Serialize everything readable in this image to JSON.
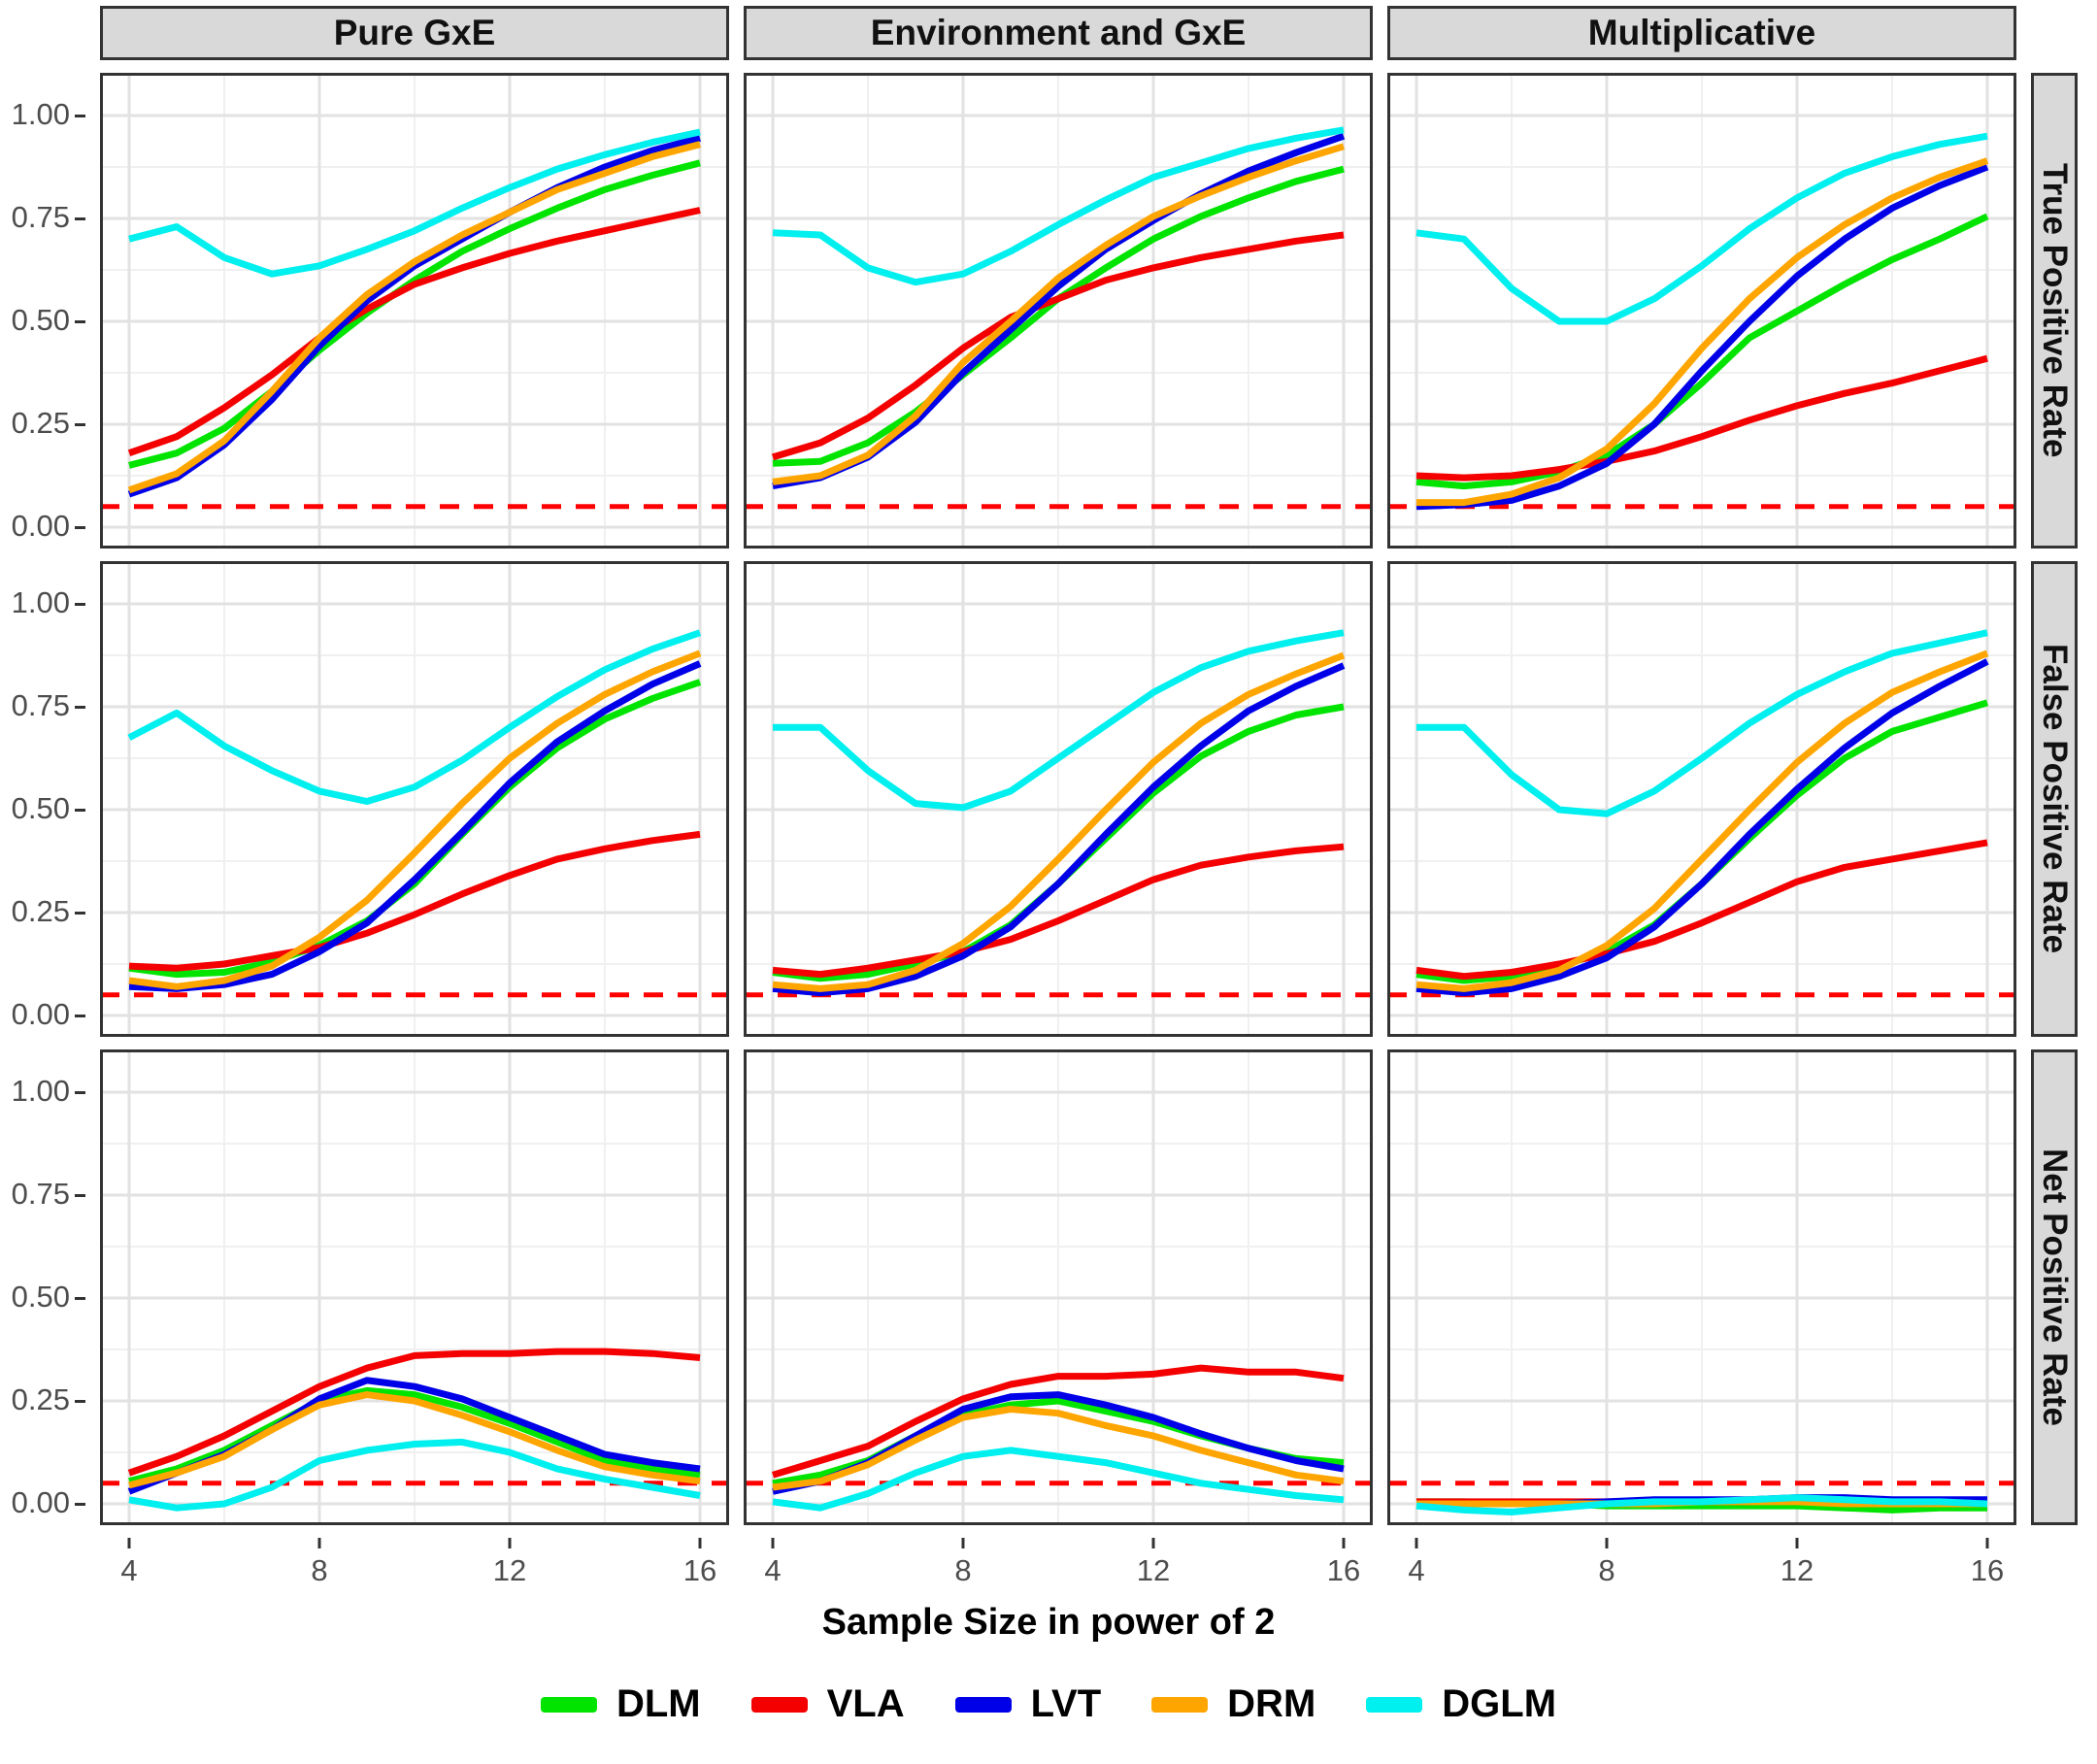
{
  "figure": {
    "columns": [
      "Pure GxE",
      "Environment and GxE",
      "Multiplicative"
    ],
    "rows": [
      "True Positive Rate",
      "False Positive Rate",
      "Net Positive Rate"
    ],
    "x_axis": {
      "title": "Sample Size in power of 2",
      "tick_labels": [
        "4",
        "8",
        "12",
        "16"
      ],
      "range": [
        4,
        16
      ]
    },
    "y_axis": {
      "tick_labels": [
        "1.00",
        "0.75",
        "0.50",
        "0.25",
        "0.00"
      ],
      "range": [
        0.0,
        1.0
      ]
    },
    "strip_bg": "#d9d9d9",
    "grid": "on"
  },
  "legend": {
    "position": "bottom",
    "items": [
      {
        "label": "DLM",
        "color": "#00e400"
      },
      {
        "label": "VLA",
        "color": "#f40000"
      },
      {
        "label": "LVT",
        "color": "#0000e8"
      },
      {
        "label": "DRM",
        "color": "#ffa500"
      },
      {
        "label": "DGLM",
        "color": "#00efef"
      }
    ]
  },
  "reference_line": {
    "y": 0.05,
    "color": "#ff0000",
    "style": "dashed"
  },
  "chart_data": [
    {
      "type": "line",
      "row": "True Positive Rate",
      "col": "Pure GxE",
      "x": [
        4,
        5,
        6,
        7,
        8,
        9,
        10,
        11,
        12,
        13,
        14,
        15,
        16
      ],
      "ylim": [
        -0.05,
        1.05
      ],
      "series": [
        {
          "name": "DLM",
          "values": [
            0.15,
            0.18,
            0.24,
            0.33,
            0.43,
            0.52,
            0.6,
            0.67,
            0.725,
            0.775,
            0.82,
            0.855,
            0.885
          ]
        },
        {
          "name": "VLA",
          "values": [
            0.18,
            0.22,
            0.29,
            0.37,
            0.46,
            0.53,
            0.59,
            0.63,
            0.665,
            0.695,
            0.72,
            0.745,
            0.77
          ]
        },
        {
          "name": "LVT",
          "values": [
            0.08,
            0.12,
            0.2,
            0.31,
            0.44,
            0.55,
            0.635,
            0.7,
            0.765,
            0.825,
            0.875,
            0.915,
            0.945
          ]
        },
        {
          "name": "DRM",
          "values": [
            0.09,
            0.13,
            0.21,
            0.33,
            0.46,
            0.565,
            0.645,
            0.71,
            0.765,
            0.82,
            0.86,
            0.9,
            0.93
          ]
        },
        {
          "name": "DGLM",
          "values": [
            0.7,
            0.73,
            0.655,
            0.615,
            0.635,
            0.675,
            0.72,
            0.775,
            0.825,
            0.87,
            0.905,
            0.935,
            0.96
          ]
        }
      ]
    },
    {
      "type": "line",
      "row": "True Positive Rate",
      "col": "Environment and GxE",
      "x": [
        4,
        5,
        6,
        7,
        8,
        9,
        10,
        11,
        12,
        13,
        14,
        15,
        16
      ],
      "ylim": [
        -0.05,
        1.05
      ],
      "series": [
        {
          "name": "DLM",
          "values": [
            0.155,
            0.16,
            0.205,
            0.28,
            0.37,
            0.46,
            0.555,
            0.63,
            0.7,
            0.755,
            0.8,
            0.84,
            0.87
          ]
        },
        {
          "name": "VLA",
          "values": [
            0.17,
            0.205,
            0.265,
            0.345,
            0.435,
            0.51,
            0.555,
            0.6,
            0.63,
            0.655,
            0.675,
            0.695,
            0.71
          ]
        },
        {
          "name": "LVT",
          "values": [
            0.1,
            0.12,
            0.17,
            0.255,
            0.375,
            0.48,
            0.585,
            0.675,
            0.745,
            0.81,
            0.865,
            0.91,
            0.95
          ]
        },
        {
          "name": "DRM",
          "values": [
            0.11,
            0.125,
            0.175,
            0.27,
            0.4,
            0.5,
            0.605,
            0.685,
            0.755,
            0.805,
            0.85,
            0.89,
            0.925
          ]
        },
        {
          "name": "DGLM",
          "values": [
            0.715,
            0.71,
            0.63,
            0.595,
            0.615,
            0.67,
            0.735,
            0.795,
            0.85,
            0.885,
            0.92,
            0.945,
            0.965
          ]
        }
      ]
    },
    {
      "type": "line",
      "row": "True Positive Rate",
      "col": "Multiplicative",
      "x": [
        4,
        5,
        6,
        7,
        8,
        9,
        10,
        11,
        12,
        13,
        14,
        15,
        16
      ],
      "ylim": [
        -0.05,
        1.05
      ],
      "series": [
        {
          "name": "DLM",
          "values": [
            0.11,
            0.1,
            0.11,
            0.135,
            0.175,
            0.25,
            0.35,
            0.46,
            0.525,
            0.59,
            0.65,
            0.7,
            0.755
          ]
        },
        {
          "name": "VLA",
          "values": [
            0.125,
            0.12,
            0.125,
            0.14,
            0.16,
            0.185,
            0.22,
            0.26,
            0.295,
            0.325,
            0.35,
            0.38,
            0.41
          ]
        },
        {
          "name": "LVT",
          "values": [
            0.05,
            0.055,
            0.065,
            0.1,
            0.155,
            0.25,
            0.38,
            0.5,
            0.61,
            0.7,
            0.775,
            0.83,
            0.875
          ]
        },
        {
          "name": "DRM",
          "values": [
            0.06,
            0.06,
            0.08,
            0.12,
            0.19,
            0.3,
            0.435,
            0.555,
            0.655,
            0.735,
            0.8,
            0.85,
            0.89
          ]
        },
        {
          "name": "DGLM",
          "values": [
            0.715,
            0.7,
            0.58,
            0.5,
            0.5,
            0.555,
            0.635,
            0.725,
            0.8,
            0.86,
            0.9,
            0.93,
            0.95
          ]
        }
      ]
    },
    {
      "type": "line",
      "row": "False Positive Rate",
      "col": "Pure GxE",
      "x": [
        4,
        5,
        6,
        7,
        8,
        9,
        10,
        11,
        12,
        13,
        14,
        15,
        16
      ],
      "ylim": [
        -0.05,
        1.05
      ],
      "series": [
        {
          "name": "DLM",
          "values": [
            0.115,
            0.1,
            0.105,
            0.13,
            0.17,
            0.23,
            0.32,
            0.44,
            0.555,
            0.65,
            0.72,
            0.77,
            0.81
          ]
        },
        {
          "name": "VLA",
          "values": [
            0.12,
            0.115,
            0.125,
            0.145,
            0.165,
            0.2,
            0.245,
            0.295,
            0.34,
            0.38,
            0.405,
            0.425,
            0.44
          ]
        },
        {
          "name": "LVT",
          "values": [
            0.07,
            0.065,
            0.075,
            0.1,
            0.155,
            0.225,
            0.33,
            0.445,
            0.565,
            0.665,
            0.74,
            0.805,
            0.855
          ]
        },
        {
          "name": "DRM",
          "values": [
            0.085,
            0.07,
            0.085,
            0.12,
            0.19,
            0.28,
            0.395,
            0.515,
            0.625,
            0.71,
            0.78,
            0.835,
            0.88
          ]
        },
        {
          "name": "DGLM",
          "values": [
            0.675,
            0.735,
            0.655,
            0.595,
            0.545,
            0.52,
            0.555,
            0.62,
            0.7,
            0.775,
            0.84,
            0.89,
            0.93
          ]
        }
      ]
    },
    {
      "type": "line",
      "row": "False Positive Rate",
      "col": "Environment and GxE",
      "x": [
        4,
        5,
        6,
        7,
        8,
        9,
        10,
        11,
        12,
        13,
        14,
        15,
        16
      ],
      "ylim": [
        -0.05,
        1.05
      ],
      "series": [
        {
          "name": "DLM",
          "values": [
            0.105,
            0.09,
            0.1,
            0.125,
            0.155,
            0.22,
            0.32,
            0.43,
            0.54,
            0.63,
            0.69,
            0.73,
            0.75
          ]
        },
        {
          "name": "VLA",
          "values": [
            0.11,
            0.1,
            0.115,
            0.135,
            0.155,
            0.185,
            0.23,
            0.28,
            0.33,
            0.365,
            0.385,
            0.4,
            0.41
          ]
        },
        {
          "name": "LVT",
          "values": [
            0.065,
            0.055,
            0.065,
            0.095,
            0.145,
            0.215,
            0.32,
            0.44,
            0.555,
            0.655,
            0.74,
            0.8,
            0.85
          ]
        },
        {
          "name": "DRM",
          "values": [
            0.075,
            0.065,
            0.075,
            0.11,
            0.175,
            0.265,
            0.38,
            0.5,
            0.615,
            0.71,
            0.78,
            0.83,
            0.875
          ]
        },
        {
          "name": "DGLM",
          "values": [
            0.7,
            0.7,
            0.595,
            0.515,
            0.505,
            0.545,
            0.625,
            0.705,
            0.785,
            0.845,
            0.885,
            0.91,
            0.93
          ]
        }
      ]
    },
    {
      "type": "line",
      "row": "False Positive Rate",
      "col": "Multiplicative",
      "x": [
        4,
        5,
        6,
        7,
        8,
        9,
        10,
        11,
        12,
        13,
        14,
        15,
        16
      ],
      "ylim": [
        -0.05,
        1.05
      ],
      "series": [
        {
          "name": "DLM",
          "values": [
            0.1,
            0.085,
            0.095,
            0.12,
            0.155,
            0.22,
            0.32,
            0.43,
            0.535,
            0.625,
            0.69,
            0.725,
            0.76
          ]
        },
        {
          "name": "VLA",
          "values": [
            0.11,
            0.095,
            0.105,
            0.125,
            0.15,
            0.18,
            0.225,
            0.275,
            0.325,
            0.36,
            0.38,
            0.4,
            0.42
          ]
        },
        {
          "name": "LVT",
          "values": [
            0.065,
            0.055,
            0.065,
            0.095,
            0.14,
            0.215,
            0.32,
            0.44,
            0.55,
            0.65,
            0.735,
            0.8,
            0.86
          ]
        },
        {
          "name": "DRM",
          "values": [
            0.075,
            0.065,
            0.08,
            0.11,
            0.17,
            0.26,
            0.38,
            0.5,
            0.615,
            0.71,
            0.785,
            0.835,
            0.88
          ]
        },
        {
          "name": "DGLM",
          "values": [
            0.7,
            0.7,
            0.585,
            0.5,
            0.49,
            0.545,
            0.625,
            0.71,
            0.78,
            0.835,
            0.88,
            0.905,
            0.93
          ]
        }
      ]
    },
    {
      "type": "line",
      "row": "Net Positive Rate",
      "col": "Pure GxE",
      "x": [
        4,
        5,
        6,
        7,
        8,
        9,
        10,
        11,
        12,
        13,
        14,
        15,
        16
      ],
      "ylim": [
        -0.05,
        1.05
      ],
      "series": [
        {
          "name": "DLM",
          "values": [
            0.055,
            0.085,
            0.13,
            0.19,
            0.25,
            0.275,
            0.265,
            0.235,
            0.195,
            0.15,
            0.105,
            0.085,
            0.07
          ]
        },
        {
          "name": "VLA",
          "values": [
            0.075,
            0.115,
            0.165,
            0.225,
            0.285,
            0.33,
            0.36,
            0.365,
            0.365,
            0.37,
            0.37,
            0.365,
            0.355
          ]
        },
        {
          "name": "LVT",
          "values": [
            0.03,
            0.075,
            0.12,
            0.18,
            0.255,
            0.3,
            0.285,
            0.255,
            0.21,
            0.165,
            0.12,
            0.1,
            0.085
          ]
        },
        {
          "name": "DRM",
          "values": [
            0.045,
            0.075,
            0.115,
            0.18,
            0.24,
            0.265,
            0.25,
            0.215,
            0.175,
            0.13,
            0.09,
            0.07,
            0.055
          ]
        },
        {
          "name": "DGLM",
          "values": [
            0.01,
            -0.01,
            0.0,
            0.04,
            0.105,
            0.13,
            0.145,
            0.15,
            0.125,
            0.085,
            0.06,
            0.04,
            0.02
          ]
        }
      ]
    },
    {
      "type": "line",
      "row": "Net Positive Rate",
      "col": "Environment and GxE",
      "x": [
        4,
        5,
        6,
        7,
        8,
        9,
        10,
        11,
        12,
        13,
        14,
        15,
        16
      ],
      "ylim": [
        -0.05,
        1.05
      ],
      "series": [
        {
          "name": "DLM",
          "values": [
            0.05,
            0.07,
            0.105,
            0.165,
            0.215,
            0.24,
            0.25,
            0.225,
            0.2,
            0.165,
            0.135,
            0.11,
            0.1
          ]
        },
        {
          "name": "VLA",
          "values": [
            0.07,
            0.105,
            0.14,
            0.2,
            0.255,
            0.29,
            0.31,
            0.31,
            0.315,
            0.33,
            0.32,
            0.32,
            0.305
          ]
        },
        {
          "name": "LVT",
          "values": [
            0.03,
            0.055,
            0.1,
            0.165,
            0.23,
            0.26,
            0.265,
            0.24,
            0.21,
            0.17,
            0.135,
            0.105,
            0.085
          ]
        },
        {
          "name": "DRM",
          "values": [
            0.04,
            0.055,
            0.095,
            0.155,
            0.21,
            0.23,
            0.22,
            0.19,
            0.165,
            0.13,
            0.1,
            0.07,
            0.055
          ]
        },
        {
          "name": "DGLM",
          "values": [
            0.005,
            -0.01,
            0.025,
            0.075,
            0.115,
            0.13,
            0.115,
            0.1,
            0.075,
            0.05,
            0.035,
            0.02,
            0.01
          ]
        }
      ]
    },
    {
      "type": "line",
      "row": "Net Positive Rate",
      "col": "Multiplicative",
      "x": [
        4,
        5,
        6,
        7,
        8,
        9,
        10,
        11,
        12,
        13,
        14,
        15,
        16
      ],
      "ylim": [
        -0.05,
        1.05
      ],
      "series": [
        {
          "name": "DLM",
          "values": [
            0.005,
            0.005,
            0.0,
            0.0,
            -0.005,
            -0.005,
            -0.005,
            -0.005,
            -0.005,
            -0.01,
            -0.015,
            -0.01,
            -0.01
          ]
        },
        {
          "name": "VLA",
          "values": [
            0.005,
            0.005,
            0.005,
            0.005,
            0.005,
            0.005,
            0.005,
            0.005,
            0.01,
            0.005,
            0.005,
            0.005,
            0.005
          ]
        },
        {
          "name": "LVT",
          "values": [
            0.0,
            0.0,
            0.0,
            0.0,
            0.005,
            0.01,
            0.01,
            0.01,
            0.015,
            0.015,
            0.01,
            0.01,
            0.01
          ]
        },
        {
          "name": "DRM",
          "values": [
            0.0,
            0.0,
            0.0,
            0.0,
            0.0,
            0.0,
            0.005,
            0.005,
            0.005,
            0.0,
            0.0,
            0.0,
            0.0
          ]
        },
        {
          "name": "DGLM",
          "values": [
            -0.005,
            -0.015,
            -0.02,
            -0.01,
            0.0,
            0.005,
            0.005,
            0.01,
            0.015,
            0.01,
            0.005,
            0.005,
            0.0
          ]
        }
      ]
    }
  ]
}
